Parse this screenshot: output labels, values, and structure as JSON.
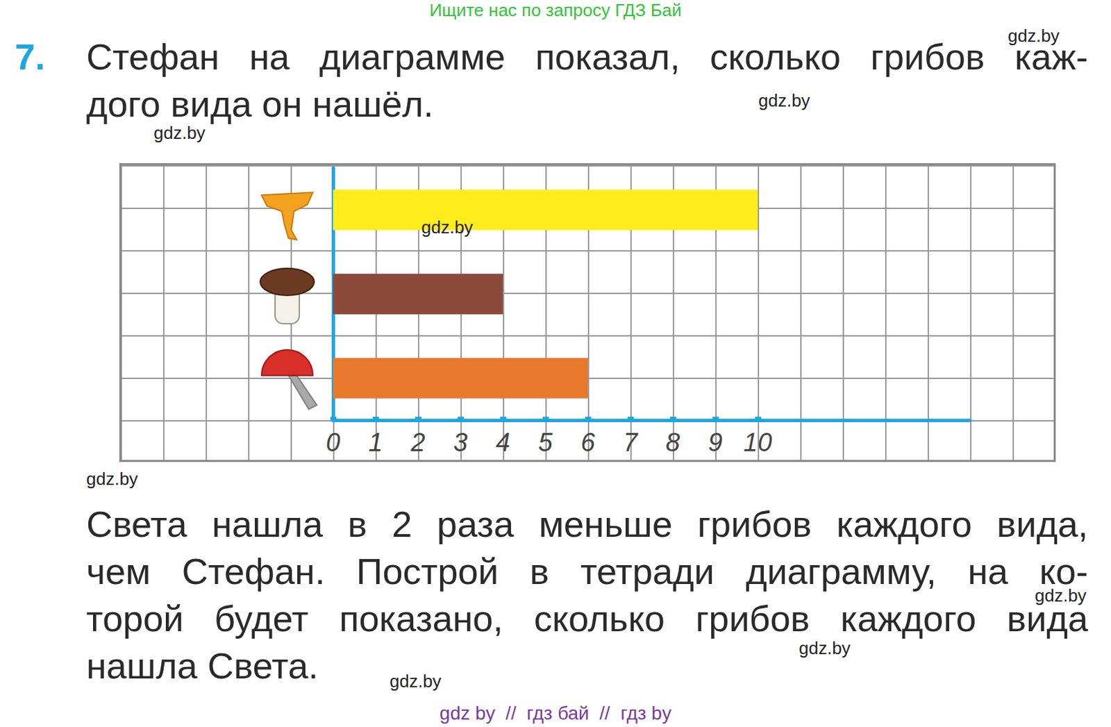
{
  "header": "Ищите нас по запросу ГДЗ Бай",
  "task": {
    "number": "7.",
    "text_lines": [
      "Стефан на диаграмме показал, сколько грибов каж-",
      "дого вида он нашёл."
    ],
    "question_lines": [
      "Света нашла в 2 раза меньше грибов каждого вида,",
      "чем Стефан. Построй в тетради диаграмму, на ко-",
      "торой будет показано, сколько грибов каждого вида",
      "нашла Света."
    ]
  },
  "footer": "gdz by  //  гдз бай  //  гдз by",
  "watermarks": [
    "gdz.by",
    "gdz.by",
    "gdz.by",
    "gdz.by",
    "gdz.by",
    "gdz.by",
    "gdz.by",
    "gdz.by"
  ],
  "chart_data": {
    "type": "bar",
    "orientation": "horizontal",
    "categories": [
      null,
      null,
      null
    ],
    "values": [
      10,
      4,
      6
    ],
    "colors": [
      "#ffec1c",
      "#8c4a3c",
      "#e8782c"
    ],
    "xlim": [
      0,
      15
    ],
    "xticks": [
      0,
      1,
      2,
      3,
      4,
      5,
      6,
      7,
      8,
      9,
      10
    ],
    "grid": true
  }
}
